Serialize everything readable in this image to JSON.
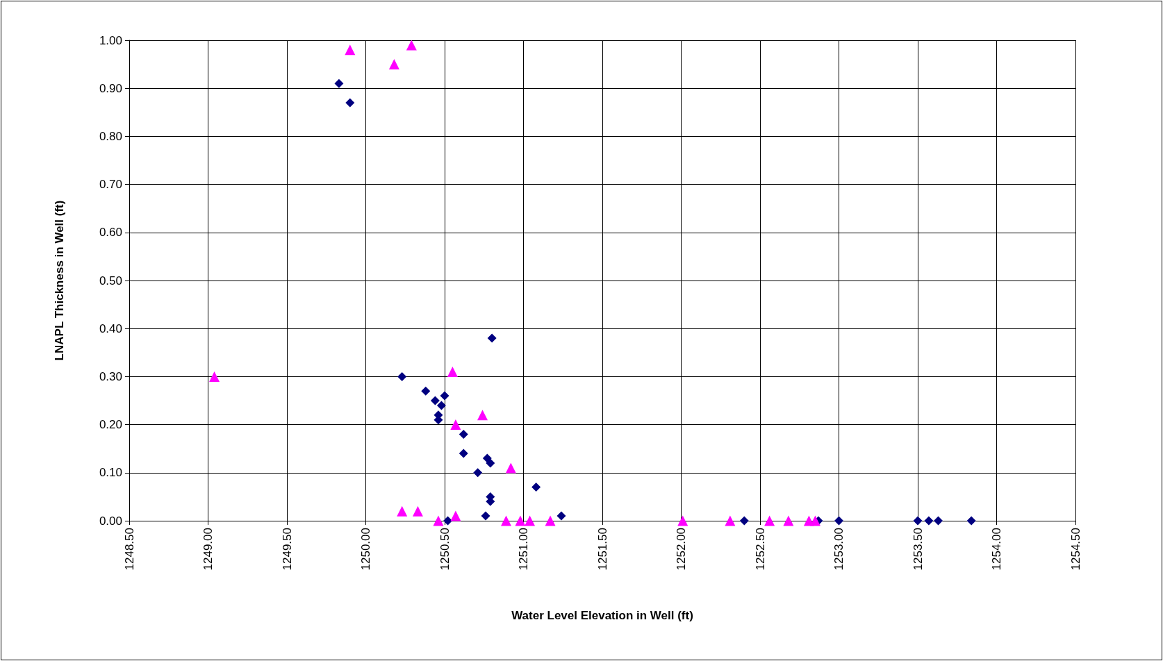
{
  "chart_data": {
    "type": "scatter",
    "xlabel": "Water Level Elevation in Well (ft)",
    "ylabel": "LNAPL Thickness in Well (ft)",
    "xlim": [
      1248.5,
      1254.5
    ],
    "xticks": [
      {
        "value": 1248.5,
        "label": "1248.50"
      },
      {
        "value": 1249,
        "label": "1249.00"
      },
      {
        "value": 1249.5,
        "label": "1249.50"
      },
      {
        "value": 1250,
        "label": "1250.00"
      },
      {
        "value": 1250.5,
        "label": "1250.50"
      },
      {
        "value": 1251,
        "label": "1251.00"
      },
      {
        "value": 1251.5,
        "label": "1251.50"
      },
      {
        "value": 1252,
        "label": "1252.00"
      },
      {
        "value": 1252.5,
        "label": "1252.50"
      },
      {
        "value": 1253,
        "label": "1253.00"
      },
      {
        "value": 1253.5,
        "label": "1253.50"
      },
      {
        "value": 1254,
        "label": "1254.00"
      },
      {
        "value": 1254.5,
        "label": "1254.50"
      }
    ],
    "ylim": [
      0,
      1
    ],
    "yticks": [
      {
        "value": 0,
        "label": "0.00"
      },
      {
        "value": 0.1,
        "label": "0.10"
      },
      {
        "value": 0.2,
        "label": "0.20"
      },
      {
        "value": 0.3,
        "label": "0.30"
      },
      {
        "value": 0.4,
        "label": "0.40"
      },
      {
        "value": 0.5,
        "label": "0.50"
      },
      {
        "value": 0.6,
        "label": "0.60"
      },
      {
        "value": 0.7,
        "label": "0.70"
      },
      {
        "value": 0.8,
        "label": "0.80"
      },
      {
        "value": 0.9,
        "label": "0.90"
      },
      {
        "value": 1,
        "label": "1.00"
      }
    ],
    "grid": true,
    "series": [
      {
        "color": "#000080",
        "marker": "diamond",
        "x": [
          1249.83,
          1249.9,
          1250.23,
          1250.38,
          1250.44,
          1250.5,
          1250.48,
          1250.46,
          1250.46,
          1250.62,
          1250.62,
          1250.77,
          1250.79,
          1250.71,
          1250.8,
          1251.08,
          1250.79,
          1250.79,
          1250.76,
          1251.24,
          1250.52,
          1252.4,
          1252.87,
          1253.0,
          1253.5,
          1253.57,
          1253.63,
          1253.84
        ],
        "values": [
          0.91,
          0.87,
          0.3,
          0.27,
          0.25,
          0.26,
          0.24,
          0.22,
          0.21,
          0.18,
          0.14,
          0.13,
          0.12,
          0.1,
          0.38,
          0.07,
          0.05,
          0.04,
          0.01,
          0.01,
          0,
          0,
          0,
          0,
          0,
          0,
          0,
          0
        ]
      },
      {
        "color": "#ff00ff",
        "marker": "triangle",
        "x": [
          1249.9,
          1250.18,
          1250.29,
          1249.04,
          1250.55,
          1250.57,
          1250.74,
          1250.92,
          1250.23,
          1250.33,
          1250.57,
          1250.46,
          1250.89,
          1250.98,
          1251.04,
          1251.17,
          1252.01,
          1252.31,
          1252.56,
          1252.68,
          1252.81,
          1252.85
        ],
        "values": [
          0.98,
          0.95,
          0.99,
          0.3,
          0.31,
          0.2,
          0.22,
          0.11,
          0.02,
          0.02,
          0.01,
          0,
          0,
          0,
          0,
          0,
          0,
          0,
          0,
          0,
          0,
          0
        ]
      }
    ]
  }
}
